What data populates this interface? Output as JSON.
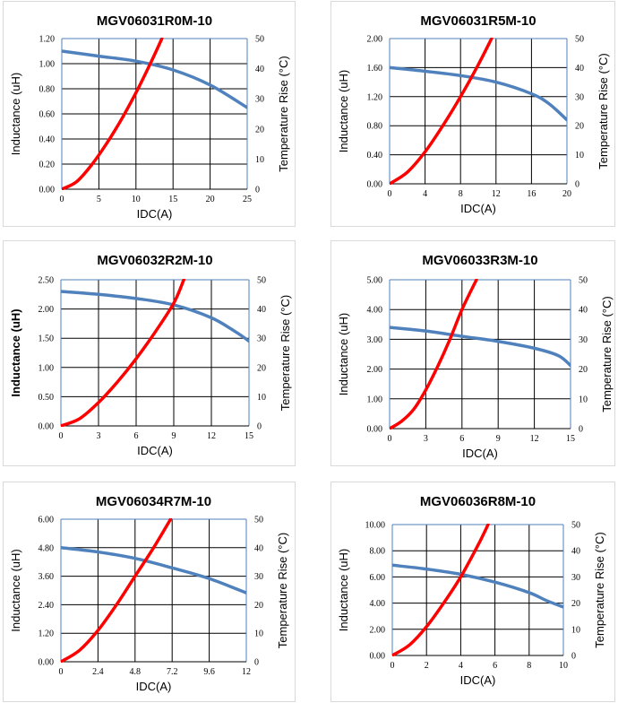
{
  "chart_data": [
    {
      "type": "line",
      "title": "MGV06031R0M-10",
      "xlabel": "IDC(A)",
      "ylabel": "Inductance (uH)",
      "y2label": "Temperature Rise (°C)",
      "xlim": [
        0,
        25
      ],
      "xticks": [
        "0",
        "5",
        "10",
        "15",
        "20",
        "25"
      ],
      "ylim": [
        0,
        1.2
      ],
      "yticks": [
        "0.00",
        "0.20",
        "0.40",
        "0.60",
        "0.80",
        "1.00",
        "1.20"
      ],
      "y2lim": [
        0,
        50
      ],
      "y2ticks": [
        "0",
        "10",
        "20",
        "30",
        "40",
        "50"
      ],
      "series": [
        {
          "name": "Inductance",
          "axis": "left",
          "color": "#4f81bd",
          "x": [
            0,
            5,
            10,
            15,
            20,
            25
          ],
          "y": [
            1.1,
            1.06,
            1.02,
            0.95,
            0.83,
            0.65
          ]
        },
        {
          "name": "Temperature Rise",
          "axis": "right",
          "color": "#ff0000",
          "x": [
            0,
            2,
            4,
            6,
            8,
            10,
            12,
            13.5
          ],
          "y": [
            0,
            2.5,
            8,
            15,
            23,
            32,
            42,
            50
          ]
        }
      ]
    },
    {
      "type": "line",
      "title": "MGV06031R5M-10",
      "xlabel": "IDC(A)",
      "ylabel": "Inductance (uH)",
      "y2label": "Temperature Rise (°C)",
      "xlim": [
        0,
        20
      ],
      "xticks": [
        "0",
        "4",
        "8",
        "12",
        "16",
        "20"
      ],
      "ylim": [
        0,
        2.0
      ],
      "yticks": [
        "0.00",
        "0.40",
        "0.80",
        "1.20",
        "1.60",
        "2.00"
      ],
      "y2lim": [
        0,
        50
      ],
      "y2ticks": [
        "0",
        "10",
        "20",
        "30",
        "40",
        "50"
      ],
      "series": [
        {
          "name": "Inductance",
          "axis": "left",
          "color": "#4f81bd",
          "x": [
            0,
            4,
            8,
            12,
            16,
            18,
            20
          ],
          "y": [
            1.6,
            1.55,
            1.49,
            1.4,
            1.24,
            1.1,
            0.88
          ]
        },
        {
          "name": "Temperature Rise",
          "axis": "right",
          "color": "#ff0000",
          "x": [
            0,
            2,
            4,
            6,
            8,
            10,
            11.5
          ],
          "y": [
            0,
            4,
            11,
            20,
            30,
            41,
            50
          ]
        }
      ]
    },
    {
      "type": "line",
      "title": "MGV06032R2M-10",
      "xlabel": "IDC(A)",
      "ylabel": "Inductance (uH)",
      "y2label": "Temperature Rise (°C)",
      "xlim": [
        0,
        15
      ],
      "xticks": [
        "0",
        "3",
        "6",
        "9",
        "12",
        "15"
      ],
      "ylim": [
        0,
        2.5
      ],
      "yticks": [
        "0.00",
        "0.50",
        "1.00",
        "1.50",
        "2.00",
        "2.50"
      ],
      "y2lim": [
        0,
        50
      ],
      "y2ticks": [
        "0",
        "10",
        "20",
        "30",
        "40",
        "50"
      ],
      "series": [
        {
          "name": "Inductance",
          "axis": "left",
          "color": "#4f81bd",
          "x": [
            0,
            3,
            6,
            9,
            12,
            14,
            15
          ],
          "y": [
            2.3,
            2.25,
            2.18,
            2.07,
            1.85,
            1.6,
            1.45
          ]
        },
        {
          "name": "Temperature Rise",
          "axis": "right",
          "color": "#ff0000",
          "x": [
            0,
            1.5,
            3,
            4.5,
            6,
            7.5,
            9,
            9.8
          ],
          "y": [
            0,
            2.5,
            8,
            15,
            23,
            32,
            42,
            50
          ]
        }
      ]
    },
    {
      "type": "line",
      "title": "MGV06033R3M-10",
      "xlabel": "IDC(A)",
      "ylabel": "Inductance (uH)",
      "y2label": "Temperature Rise (°C)",
      "xlim": [
        0,
        15
      ],
      "xticks": [
        "0",
        "3",
        "6",
        "9",
        "12",
        "15"
      ],
      "ylim": [
        0,
        5.0
      ],
      "yticks": [
        "0.00",
        "1.00",
        "2.00",
        "3.00",
        "4.00",
        "5.00"
      ],
      "y2lim": [
        0,
        50
      ],
      "y2ticks": [
        "0",
        "10",
        "20",
        "30",
        "40",
        "50"
      ],
      "series": [
        {
          "name": "Inductance",
          "axis": "left",
          "color": "#4f81bd",
          "x": [
            0,
            3,
            6,
            9,
            12,
            14,
            15
          ],
          "y": [
            3.4,
            3.28,
            3.1,
            2.93,
            2.7,
            2.45,
            2.12
          ]
        },
        {
          "name": "Temperature Rise",
          "axis": "right",
          "color": "#ff0000",
          "x": [
            0,
            1,
            2,
            3,
            4,
            5,
            6,
            7.2
          ],
          "y": [
            0,
            2.5,
            6.5,
            13,
            21,
            30,
            40,
            50
          ]
        }
      ]
    },
    {
      "type": "line",
      "title": "MGV06034R7M-10",
      "xlabel": "IDC(A)",
      "ylabel": "Inductance (uH)",
      "y2label": "Temperature Rise (°C)",
      "xlim": [
        0,
        12
      ],
      "xticks": [
        "0",
        "2.4",
        "4.8",
        "7.2",
        "9.6",
        "12"
      ],
      "ylim": [
        0,
        6.0
      ],
      "yticks": [
        "0.00",
        "1.20",
        "2.40",
        "3.60",
        "4.80",
        "6.00"
      ],
      "y2lim": [
        0,
        50
      ],
      "y2ticks": [
        "0",
        "10",
        "20",
        "30",
        "40",
        "50"
      ],
      "series": [
        {
          "name": "Inductance",
          "axis": "left",
          "color": "#4f81bd",
          "x": [
            0,
            2.4,
            4.8,
            7.2,
            9.6,
            12
          ],
          "y": [
            4.8,
            4.62,
            4.35,
            3.95,
            3.5,
            2.9
          ]
        },
        {
          "name": "Temperature Rise",
          "axis": "right",
          "color": "#ff0000",
          "x": [
            0,
            1.2,
            2.4,
            3.6,
            4.8,
            6.0,
            7.1
          ],
          "y": [
            0,
            4,
            11,
            20,
            30,
            40,
            50
          ]
        }
      ]
    },
    {
      "type": "line",
      "title": "MGV06036R8M-10",
      "xlabel": "IDC(A)",
      "ylabel": "Inductance (uH)",
      "y2label": "Temperature Rise (°C)",
      "xlim": [
        0,
        10
      ],
      "xticks": [
        "0",
        "2",
        "4",
        "6",
        "8",
        "10"
      ],
      "ylim": [
        0,
        10.0
      ],
      "yticks": [
        "0.00",
        "2.00",
        "4.00",
        "6.00",
        "8.00",
        "10.00"
      ],
      "y2lim": [
        0,
        50
      ],
      "y2ticks": [
        "0",
        "10",
        "20",
        "30",
        "40",
        "50"
      ],
      "series": [
        {
          "name": "Inductance",
          "axis": "left",
          "color": "#4f81bd",
          "x": [
            0,
            2,
            4,
            6,
            8,
            9,
            10
          ],
          "y": [
            6.9,
            6.6,
            6.2,
            5.6,
            4.8,
            4.2,
            3.7
          ]
        },
        {
          "name": "Temperature Rise",
          "axis": "right",
          "color": "#ff0000",
          "x": [
            0,
            1,
            2,
            3,
            4,
            5,
            5.6
          ],
          "y": [
            0,
            4,
            11,
            20,
            30,
            42,
            50
          ]
        }
      ]
    }
  ]
}
